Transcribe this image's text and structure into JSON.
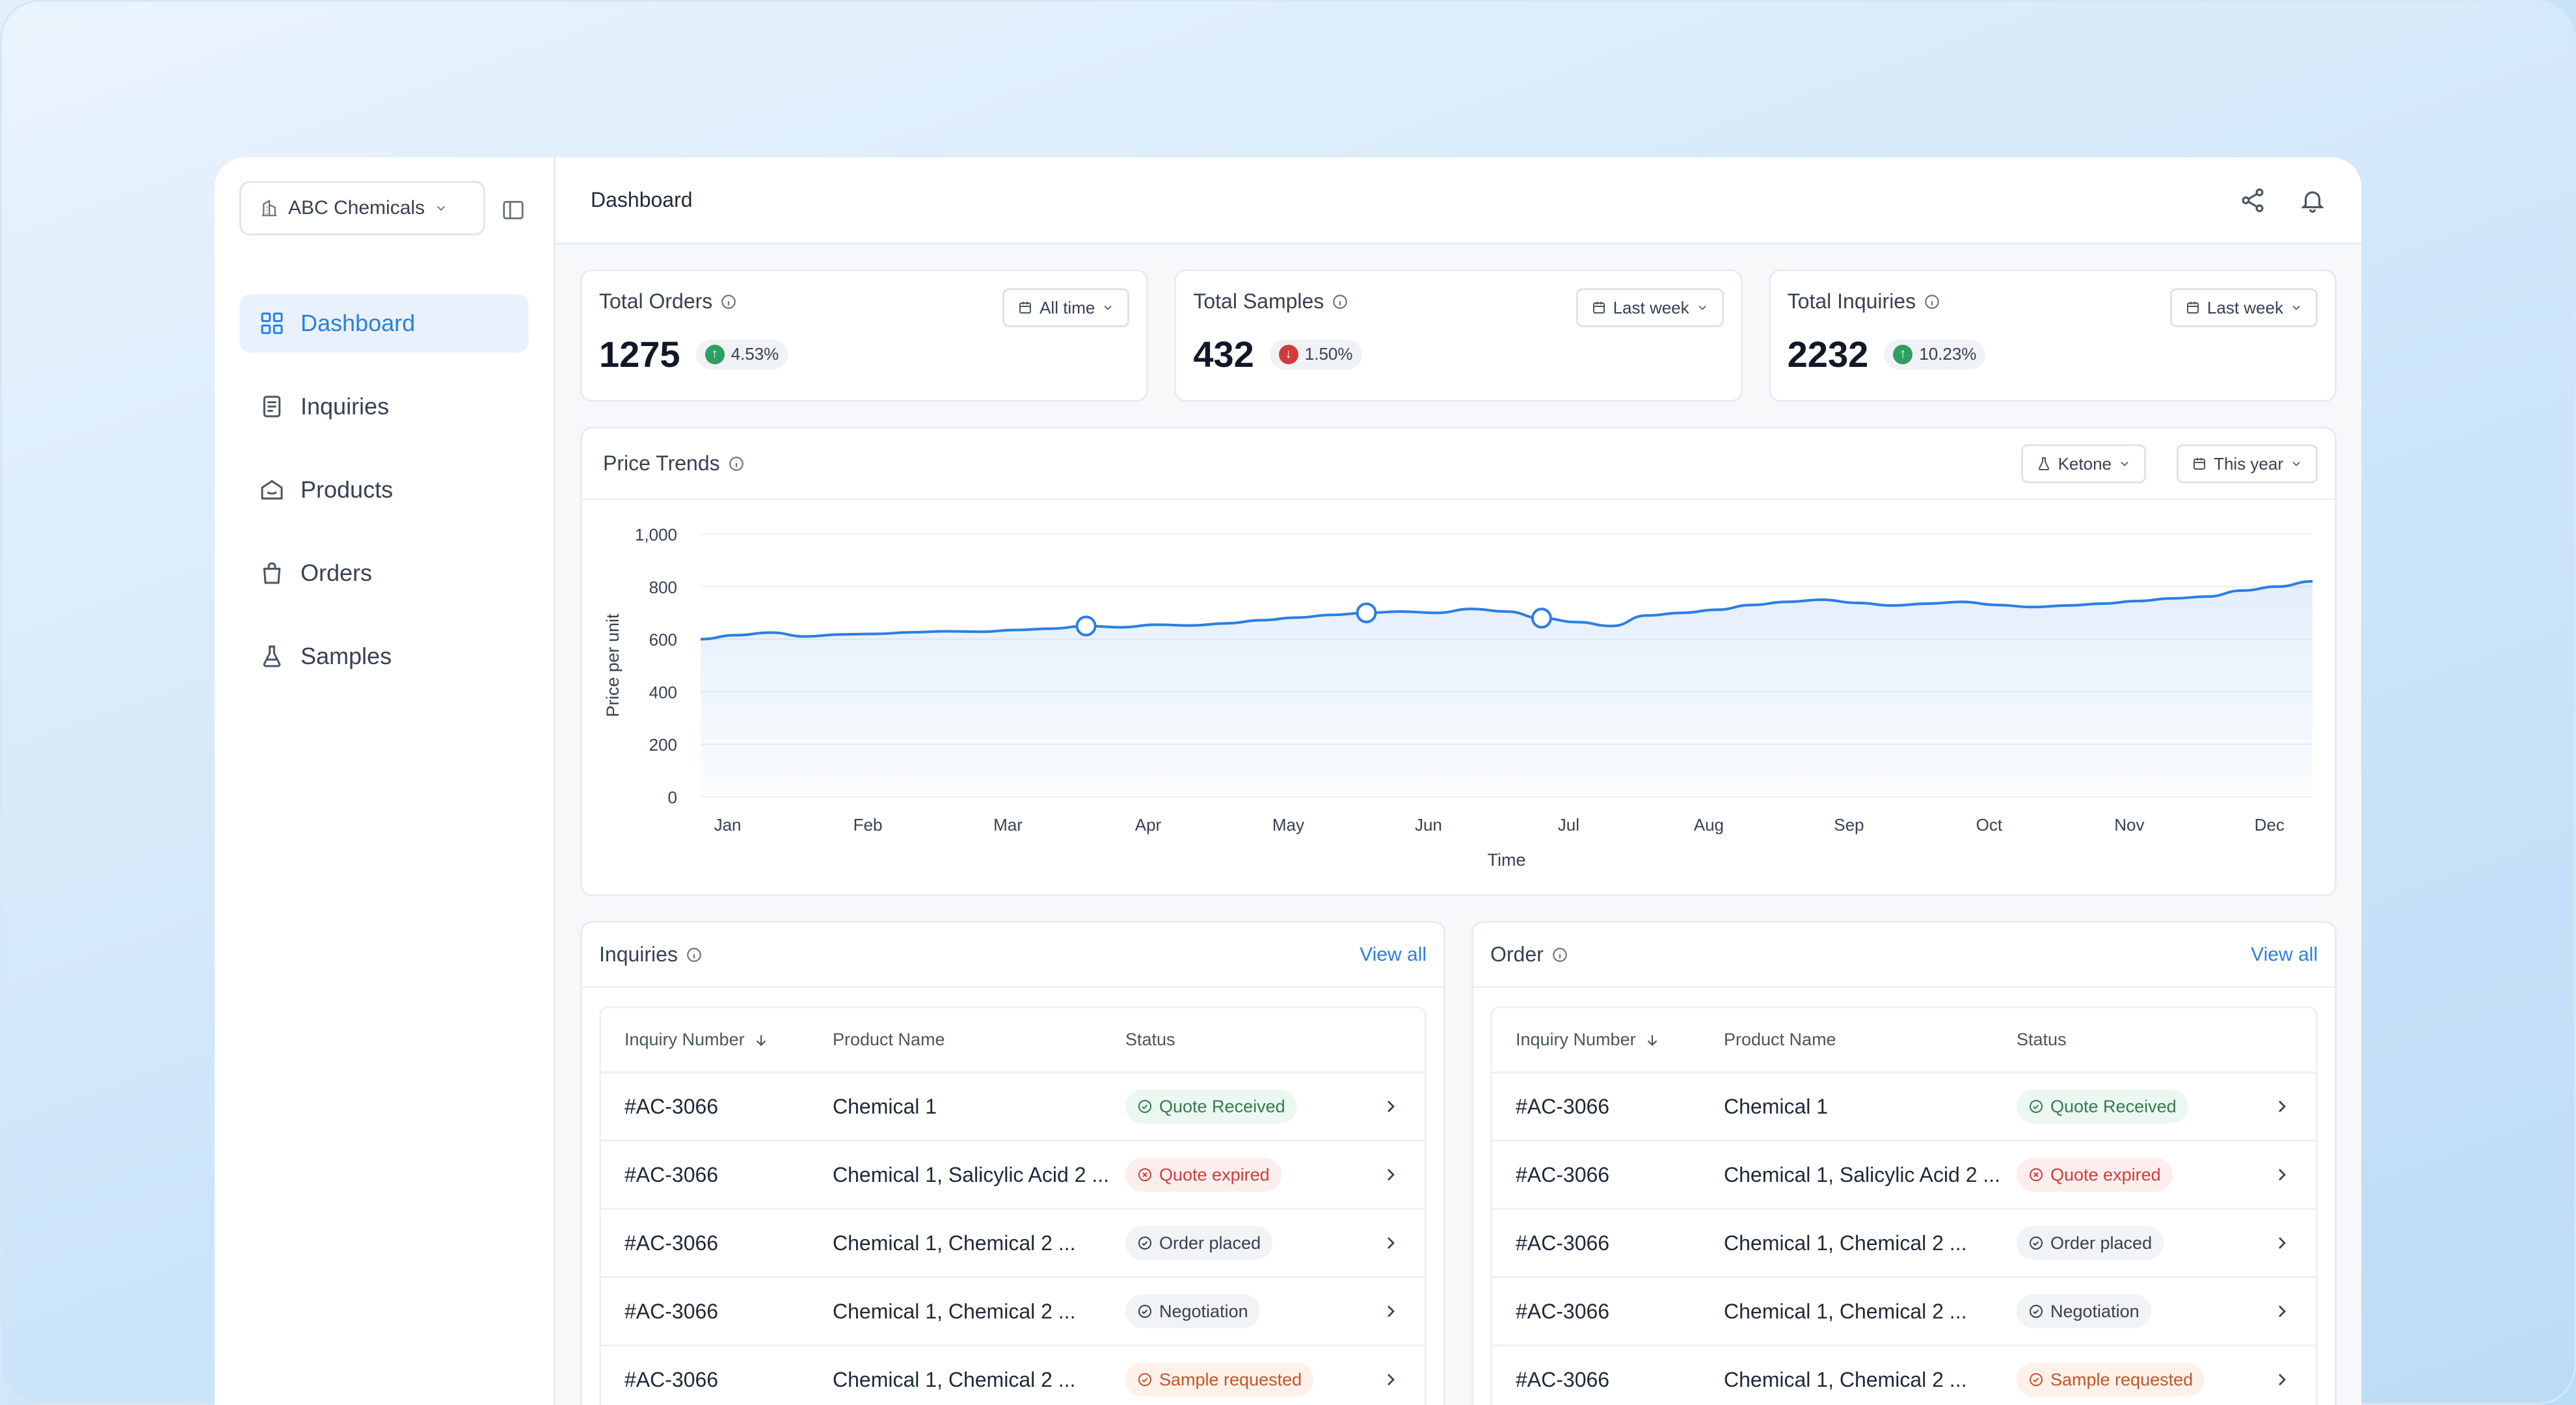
{
  "org": {
    "name": "ABC Chemicals"
  },
  "nav": [
    {
      "label": "Dashboard",
      "icon": "grid-icon",
      "active": true
    },
    {
      "label": "Inquiries",
      "icon": "document-icon"
    },
    {
      "label": "Products",
      "icon": "box-icon"
    },
    {
      "label": "Orders",
      "icon": "bag-icon"
    },
    {
      "label": "Samples",
      "icon": "flask-icon"
    }
  ],
  "header": {
    "title": "Dashboard"
  },
  "cards": [
    {
      "label": "Total Orders",
      "value": "1275",
      "change": "4.53%",
      "trend": "up",
      "filter": "All time"
    },
    {
      "label": "Total Samples",
      "value": "432",
      "change": "1.50%",
      "trend": "down",
      "filter": "Last week"
    },
    {
      "label": "Total Inquiries",
      "value": "2232",
      "change": "10.23%",
      "trend": "up",
      "filter": "Last week"
    }
  ],
  "price_trends": {
    "title": "Price Trends",
    "product_filter": "Ketone",
    "period_filter": "This year"
  },
  "chart_data": {
    "type": "area",
    "xlabel": "Time",
    "ylabel": "Price per unit",
    "ylim": [
      0,
      1000
    ],
    "yticks": [
      "0",
      "200",
      "400",
      "600",
      "800",
      "1,000"
    ],
    "xticks": [
      "Jan",
      "Feb",
      "Mar",
      "Apr",
      "May",
      "Jun",
      "Jul",
      "Aug",
      "Sep",
      "Oct",
      "Nov",
      "Dec"
    ],
    "x": [
      0,
      0.25,
      0.5,
      0.75,
      1,
      1.25,
      1.5,
      1.75,
      2,
      2.25,
      2.5,
      2.75,
      3,
      3.25,
      3.5,
      3.75,
      4,
      4.25,
      4.5,
      4.75,
      5,
      5.25,
      5.5,
      5.75,
      6,
      6.25,
      6.5,
      6.75,
      7,
      7.25,
      7.5,
      7.75,
      8,
      8.25,
      8.5,
      8.75,
      9,
      9.25,
      9.5,
      9.75,
      10,
      10.25,
      10.5,
      10.75,
      11,
      11.25,
      11.5
    ],
    "values": [
      600,
      615,
      625,
      610,
      618,
      620,
      626,
      630,
      628,
      635,
      640,
      650,
      645,
      655,
      652,
      660,
      672,
      682,
      692,
      700,
      705,
      700,
      715,
      705,
      680,
      665,
      650,
      690,
      700,
      712,
      730,
      742,
      750,
      738,
      728,
      735,
      742,
      730,
      722,
      728,
      735,
      745,
      755,
      762,
      785,
      800,
      820
    ],
    "markers": [
      2.75,
      4.75,
      6
    ],
    "grid": true
  },
  "inquiries": {
    "title": "Inquiries",
    "view_all": "View all",
    "columns": [
      "Inquiry Number",
      "Product Name",
      "Status"
    ],
    "rows": [
      {
        "id": "#AC-3066",
        "product": "Chemical 1",
        "status": "Quote Received",
        "tone": "green"
      },
      {
        "id": "#AC-3066",
        "product": "Chemical 1, Salicylic Acid 2 ...",
        "status": "Quote expired",
        "tone": "red"
      },
      {
        "id": "#AC-3066",
        "product": "Chemical 1, Chemical 2 ...",
        "status": "Order placed",
        "tone": "gray"
      },
      {
        "id": "#AC-3066",
        "product": "Chemical 1, Chemical 2 ...",
        "status": "Negotiation",
        "tone": "gray"
      },
      {
        "id": "#AC-3066",
        "product": "Chemical 1, Chemical 2 ...",
        "status": "Sample requested",
        "tone": "orange"
      }
    ]
  },
  "orders": {
    "title": "Order",
    "view_all": "View all",
    "columns": [
      "Inquiry Number",
      "Product Name",
      "Status"
    ],
    "rows": [
      {
        "id": "#AC-3066",
        "product": "Chemical 1",
        "status": "Quote Received",
        "tone": "green"
      },
      {
        "id": "#AC-3066",
        "product": "Chemical 1, Salicylic Acid 2 ...",
        "status": "Quote expired",
        "tone": "red"
      },
      {
        "id": "#AC-3066",
        "product": "Chemical 1, Chemical 2 ...",
        "status": "Order placed",
        "tone": "gray"
      },
      {
        "id": "#AC-3066",
        "product": "Chemical 1, Chemical 2 ...",
        "status": "Negotiation",
        "tone": "gray"
      },
      {
        "id": "#AC-3066",
        "product": "Chemical 1, Chemical 2 ...",
        "status": "Sample requested",
        "tone": "orange"
      }
    ]
  },
  "colors": {
    "accent": "#2b7fe0",
    "up": "#2f9e62",
    "down": "#d23b3b"
  }
}
